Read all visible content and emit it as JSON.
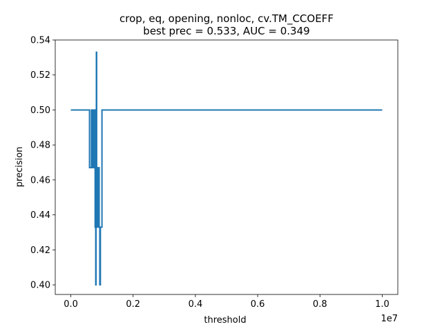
{
  "chart_data": {
    "type": "line",
    "title": "crop, eq, opening, nonloc, cv.TM_CCOEFF",
    "subtitle": "best prec = 0.533, AUC = 0.349",
    "xlabel": "threshold",
    "ylabel": "precision",
    "x_offset_label": "1e7",
    "xlim": [
      -500000,
      10500000
    ],
    "ylim": [
      0.3945,
      0.54
    ],
    "xticks": [
      0,
      2000000,
      4000000,
      6000000,
      8000000,
      10000000
    ],
    "xtick_labels": [
      "0.0",
      "0.2",
      "0.4",
      "0.6",
      "0.8",
      "1.0"
    ],
    "yticks": [
      0.4,
      0.42,
      0.44,
      0.46,
      0.48,
      0.5,
      0.52,
      0.54
    ],
    "ytick_labels": [
      "0.40",
      "0.42",
      "0.44",
      "0.46",
      "0.48",
      "0.50",
      "0.52",
      "0.54"
    ],
    "grid": false,
    "line_color": "#1f77b4",
    "series": [
      {
        "x": [
          0,
          600000,
          600000,
          660000,
          660000,
          700000,
          700000,
          740000,
          740000,
          780000,
          780000,
          800000,
          800000,
          810000,
          810000,
          820000,
          820000,
          830000,
          830000,
          840000,
          840000,
          850000,
          850000,
          860000,
          860000,
          870000,
          870000,
          890000,
          890000,
          910000,
          910000,
          930000,
          930000,
          950000,
          950000,
          970000,
          970000,
          1000000,
          1000000,
          10000000
        ],
        "y": [
          0.5,
          0.5,
          0.467,
          0.467,
          0.5,
          0.5,
          0.467,
          0.467,
          0.5,
          0.5,
          0.433,
          0.433,
          0.4,
          0.4,
          0.467,
          0.467,
          0.533,
          0.533,
          0.433,
          0.433,
          0.467,
          0.467,
          0.433,
          0.433,
          0.467,
          0.467,
          0.433,
          0.433,
          0.467,
          0.467,
          0.433,
          0.433,
          0.4,
          0.4,
          0.433,
          0.433,
          0.433,
          0.433,
          0.5,
          0.5
        ]
      }
    ]
  }
}
